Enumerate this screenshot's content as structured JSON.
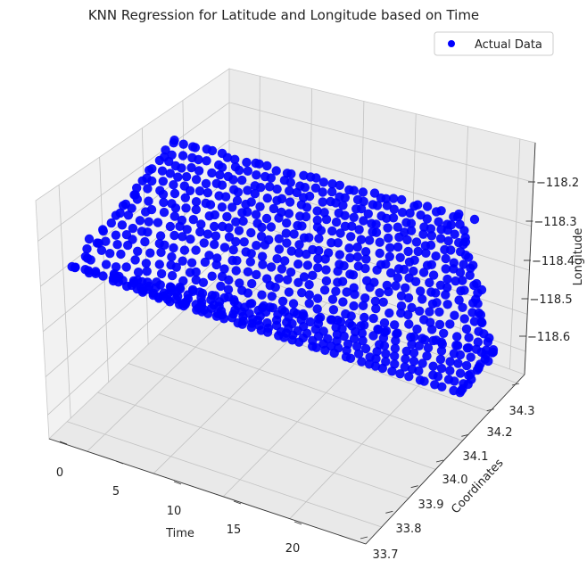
{
  "chart_data": {
    "type": "scatter",
    "subtype": "3d",
    "title": "KNN Regression for Latitude and Longitude based on Time",
    "xlabel": "Time",
    "ylabel": "Coordinates",
    "zlabel": "Longitude",
    "x_ticks": [
      "0",
      "5",
      "10",
      "15",
      "20"
    ],
    "y_ticks": [
      "33.7",
      "33.8",
      "33.9",
      "34.0",
      "34.1",
      "34.2",
      "34.3"
    ],
    "z_ticks": [
      "−118.2",
      "−118.3",
      "−118.4",
      "−118.5",
      "−118.6"
    ],
    "xlim": [
      0,
      23
    ],
    "ylim": [
      33.7,
      34.33
    ],
    "zlim": [
      -118.67,
      -118.15
    ],
    "legend": {
      "label": "Actual Data",
      "placement": "top-right"
    },
    "series": [
      {
        "name": "Actual Data",
        "color": "#0000ff",
        "marker": "circle",
        "x_range": [
          0,
          23
        ],
        "y_range": [
          33.7,
          34.33
        ],
        "z_range": [
          -118.67,
          -118.15
        ]
      }
    ],
    "grid": true
  }
}
